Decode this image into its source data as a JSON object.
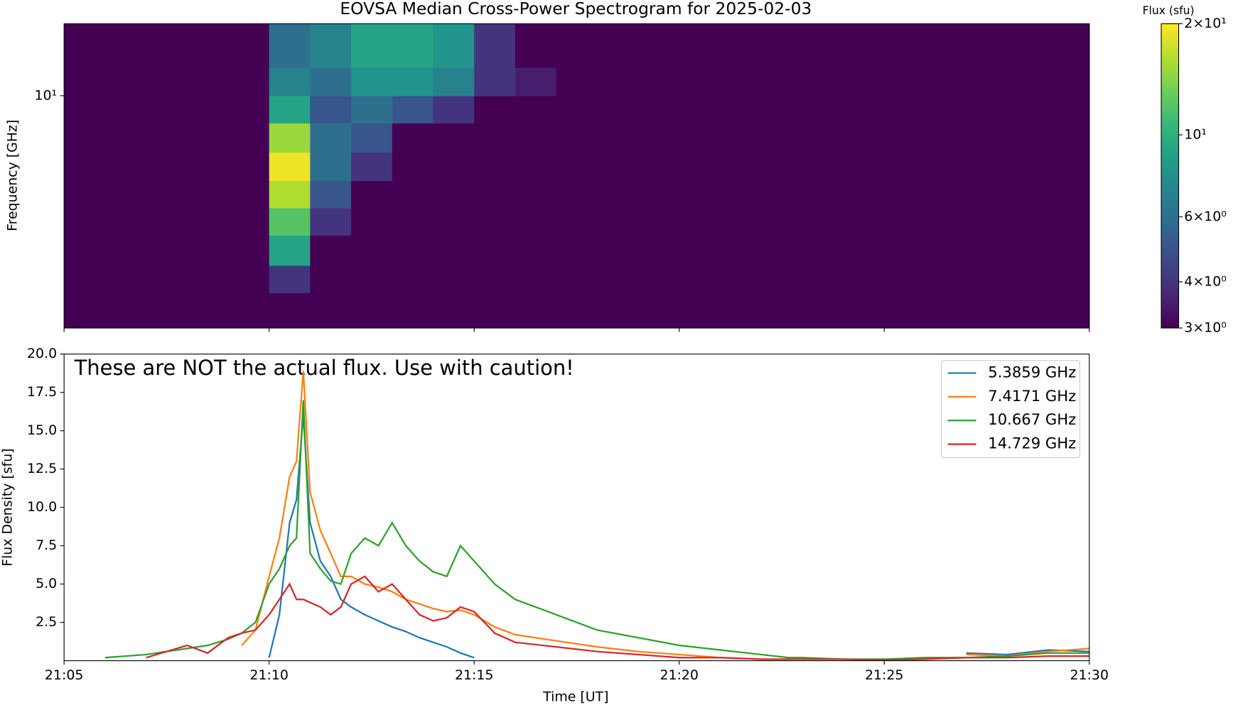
{
  "chart_data": [
    {
      "type": "heatmap",
      "title": "EOVSA Median Cross-Power Spectrogram for 2025-02-03",
      "y_label": "Frequency [GHz]",
      "ylog": true,
      "ylim": [
        1.5,
        18
      ],
      "yticks": [
        {
          "value": 10,
          "label": "10¹"
        }
      ],
      "colormap": "viridis",
      "x_edges": [
        "21:05",
        "21:06",
        "21:07",
        "21:08",
        "21:09",
        "21:10",
        "21:11",
        "21:12",
        "21:13",
        "21:14",
        "21:15",
        "21:16",
        "21:17",
        "21:18",
        "21:19",
        "21:20",
        "21:21",
        "21:22",
        "21:23",
        "21:24",
        "21:25",
        "21:26",
        "21:27",
        "21:28",
        "21:29",
        "21:30"
      ],
      "y_edges": [
        1.5,
        2,
        2.5,
        3.2,
        4,
        5,
        6.3,
        8,
        10,
        12.6,
        18
      ],
      "z": [
        [
          3,
          3,
          3,
          3,
          3,
          3,
          3,
          3,
          3,
          3,
          3,
          3,
          3,
          3,
          3,
          3,
          3,
          3,
          3,
          3,
          3,
          3,
          3,
          3,
          3
        ],
        [
          3,
          3,
          3,
          3,
          3,
          4,
          3,
          3,
          3,
          3,
          3,
          3,
          3,
          3,
          3,
          3,
          3,
          3,
          3,
          3,
          3,
          3,
          3,
          3,
          3
        ],
        [
          3,
          3,
          3,
          3,
          3,
          9,
          3,
          3,
          3,
          3,
          3,
          3,
          3,
          3,
          3,
          3,
          3,
          3,
          3,
          3,
          3,
          3,
          3,
          3,
          3
        ],
        [
          3,
          3,
          3,
          3,
          3,
          12,
          4,
          3,
          3,
          3,
          3,
          3,
          3,
          3,
          3,
          3,
          3,
          3,
          3,
          3,
          3,
          3,
          3,
          3,
          3
        ],
        [
          3,
          3,
          3,
          3,
          3,
          16,
          5,
          3,
          3,
          3,
          3,
          3,
          3,
          3,
          3,
          3,
          3,
          3,
          3,
          3,
          3,
          3,
          3,
          3,
          3
        ],
        [
          3,
          3,
          3,
          3,
          3,
          19,
          6,
          4,
          3,
          3,
          3,
          3,
          3,
          3,
          3,
          3,
          3,
          3,
          3,
          3,
          3,
          3,
          3,
          3,
          3
        ],
        [
          3,
          3,
          3,
          3,
          3,
          15,
          6,
          5,
          3,
          3,
          3,
          3,
          3,
          3,
          3,
          3,
          3,
          3,
          3,
          3,
          3,
          3,
          3,
          3,
          3
        ],
        [
          3,
          3,
          3,
          3,
          3,
          9,
          5,
          6,
          5,
          4,
          3,
          3,
          3,
          3,
          3,
          3,
          3,
          3,
          3,
          3,
          3,
          3,
          3,
          3,
          3
        ],
        [
          3,
          3,
          3,
          3,
          3,
          7,
          6,
          8,
          8,
          7,
          4,
          3.5,
          3,
          3,
          3,
          3,
          3,
          3,
          3,
          3,
          3,
          3,
          3,
          3,
          3
        ],
        [
          3,
          3,
          3,
          3,
          3,
          6,
          7,
          9,
          9,
          8,
          4,
          3,
          3,
          3,
          3,
          3,
          3,
          3,
          3,
          3,
          3,
          3,
          3,
          3,
          3
        ]
      ],
      "colorbar": {
        "label": "Flux (sfu)",
        "log": true,
        "zlim": [
          3,
          20
        ],
        "ticks": [
          {
            "value": 3,
            "label": "3×10⁰"
          },
          {
            "value": 4,
            "label": "4×10⁰"
          },
          {
            "value": 6,
            "label": "6×10⁰"
          },
          {
            "value": 10,
            "label": "10¹"
          },
          {
            "value": 20,
            "label": "2×10¹"
          }
        ]
      }
    },
    {
      "type": "line",
      "annotation": "These are NOT the actual flux. Use with caution!",
      "x_label": "Time [UT]",
      "y_label": "Flux Density [sfu]",
      "xlim": [
        "21:05",
        "21:30"
      ],
      "xticks": [
        "21:05",
        "21:10",
        "21:15",
        "21:20",
        "21:25",
        "21:30"
      ],
      "ylim": [
        0,
        20
      ],
      "yticks": [
        2.5,
        {
          "value": 5,
          "label": "5.0"
        },
        7.5,
        {
          "value": 10,
          "label": "10.0"
        },
        12.5,
        {
          "value": 15,
          "label": "15.0"
        },
        17.5,
        {
          "value": 20,
          "label": "20.0"
        }
      ],
      "legend": "upper right",
      "x": [
        "21:05:00",
        "21:06:00",
        "21:07:00",
        "21:08:00",
        "21:08:30",
        "21:09:00",
        "21:09:20",
        "21:09:40",
        "21:10:00",
        "21:10:15",
        "21:10:30",
        "21:10:40",
        "21:10:50",
        "21:11:00",
        "21:11:15",
        "21:11:30",
        "21:11:45",
        "21:12:00",
        "21:12:20",
        "21:12:40",
        "21:13:00",
        "21:13:20",
        "21:13:40",
        "21:14:00",
        "21:14:20",
        "21:14:40",
        "21:15:00",
        "21:15:30",
        "21:16:00",
        "21:17:00",
        "21:18:00",
        "21:19:00",
        "21:20:00",
        "21:21:00",
        "21:22:00",
        "21:22:40",
        "21:23:00",
        "21:24:00",
        "21:25:00",
        "21:26:00",
        "21:27:00",
        "21:28:00",
        "21:29:00",
        "21:30:00"
      ],
      "series": [
        {
          "name": "5.3859 GHz",
          "color": "#1f77b4",
          "values": [
            null,
            null,
            null,
            null,
            null,
            null,
            null,
            null,
            0.2,
            3,
            9,
            10.5,
            16,
            9,
            6.5,
            5.5,
            4,
            3.5,
            3,
            2.6,
            2.2,
            1.9,
            1.5,
            1.2,
            0.9,
            0.5,
            0.2,
            null,
            null,
            null,
            null,
            null,
            null,
            null,
            null,
            null,
            null,
            null,
            null,
            null,
            0.5,
            0.4,
            0.7,
            0.6
          ]
        },
        {
          "name": "7.4171 GHz",
          "color": "#ff7f0e",
          "values": [
            null,
            null,
            null,
            null,
            null,
            null,
            1,
            2,
            5.5,
            8,
            12,
            13,
            18.9,
            11,
            8.5,
            7,
            5.5,
            5.5,
            5,
            4.8,
            4.5,
            4,
            3.7,
            3.4,
            3.2,
            3.3,
            3,
            2.2,
            1.7,
            1.3,
            0.9,
            0.6,
            0.4,
            0.2,
            0.1,
            0.1,
            null,
            null,
            null,
            null,
            0.4,
            0.3,
            0.6,
            0.8
          ]
        },
        {
          "name": "10.667 GHz",
          "color": "#2ca02c",
          "values": [
            null,
            0.2,
            0.4,
            0.8,
            1,
            1.4,
            1.8,
            2.5,
            5,
            6,
            7.5,
            8,
            17,
            7,
            6,
            5.2,
            5,
            7,
            8,
            7.5,
            9,
            7.5,
            6.5,
            5.8,
            5.5,
            7.5,
            6.5,
            5,
            4,
            3,
            2,
            1.5,
            1,
            0.7,
            0.4,
            0.2,
            0.2,
            0.1,
            0.1,
            0.2,
            0.2,
            0.3,
            0.5,
            0.5
          ]
        },
        {
          "name": "14.729 GHz",
          "color": "#d62728",
          "values": [
            null,
            null,
            0.2,
            1,
            0.5,
            1.5,
            1.8,
            2,
            3,
            4,
            5,
            4,
            4,
            3.8,
            3.5,
            3,
            3.5,
            5,
            5.5,
            4.5,
            5,
            4,
            3,
            2.6,
            2.8,
            3.5,
            3.2,
            1.8,
            1.2,
            0.9,
            0.6,
            0.4,
            0.2,
            0.2,
            0.1,
            0.1,
            0.1,
            0.1,
            0.05,
            0.1,
            0.2,
            0.2,
            0.3,
            0.3
          ]
        }
      ]
    }
  ]
}
